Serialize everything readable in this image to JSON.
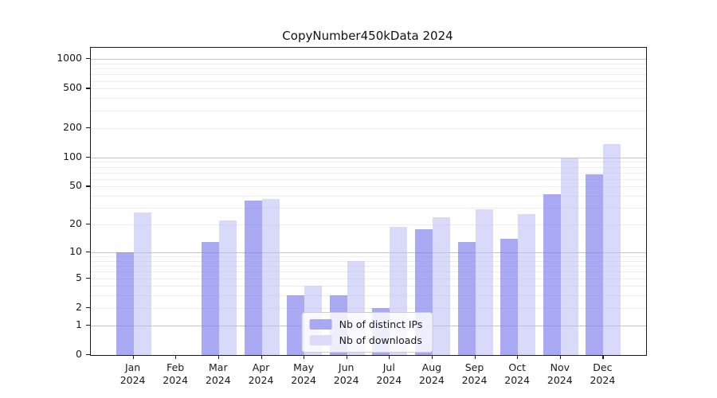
{
  "title": "CopyNumber450kData 2024",
  "legend": {
    "items": [
      {
        "label": "Nb of distinct IPs",
        "swatch_color": "#a9a9f1"
      },
      {
        "label": "Nb of downloads",
        "swatch_color": "#dcdcfa"
      }
    ]
  },
  "colors": {
    "ips_bar": "rgba(124,124,238,0.66)",
    "downloads_bar": "rgba(186,186,246,0.55)",
    "major_grid": "#c4c4c4",
    "minor_grid": "#ededed",
    "axis": "#1a1a1a"
  },
  "chart_data": {
    "type": "bar",
    "title": "CopyNumber450kData 2024",
    "categories": [
      "Jan",
      "Feb",
      "Mar",
      "Apr",
      "May",
      "Jun",
      "Jul",
      "Aug",
      "Sep",
      "Oct",
      "Nov",
      "Dec"
    ],
    "category_year": "2024",
    "series": [
      {
        "name": "Nb of distinct IPs",
        "values": [
          10,
          0,
          13,
          36,
          3,
          3,
          2,
          18,
          13,
          14,
          42,
          67
        ]
      },
      {
        "name": "Nb of downloads",
        "values": [
          27,
          0,
          22,
          37,
          4,
          8,
          19,
          24,
          29,
          26,
          100,
          136
        ]
      }
    ],
    "xlabel": "",
    "ylabel": "",
    "y_scale": "log10(1+x)",
    "y_ticks": [
      0,
      1,
      2,
      5,
      10,
      20,
      50,
      100,
      200,
      500,
      1000
    ],
    "ylim": [
      0,
      1300
    ],
    "grid": true,
    "legend_position": "lower center"
  }
}
